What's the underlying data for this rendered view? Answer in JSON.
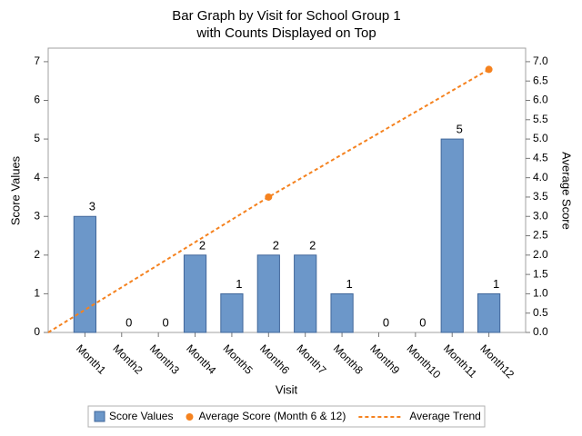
{
  "chart_data": {
    "type": "bar",
    "title": [
      "Bar Graph by Visit for School Group 1",
      "with Counts Displayed on Top"
    ],
    "x_label": "Visit",
    "y_label": "Score Values",
    "y2_label": "Average Score",
    "categories": [
      "Month1",
      "Month2",
      "Month3",
      "Month4",
      "Month5",
      "Month6",
      "Month7",
      "Month8",
      "Month9",
      "Month10",
      "Month11",
      "Month12"
    ],
    "xlim": [
      0,
      13
    ],
    "ylim": [
      0,
      7.35
    ],
    "yticks": [
      0,
      1,
      2,
      3,
      4,
      5,
      6,
      7
    ],
    "y2lim": [
      0,
      7.35
    ],
    "y2ticks": [
      {
        "value": 0,
        "label": "0.0"
      },
      {
        "value": 0.5,
        "label": "0.5"
      },
      {
        "value": 1,
        "label": "1.0"
      },
      {
        "value": 1.5,
        "label": "1.5"
      },
      {
        "value": 2,
        "label": "2.0"
      },
      {
        "value": 2.5,
        "label": "2.5"
      },
      {
        "value": 3,
        "label": "3.0"
      },
      {
        "value": 3.5,
        "label": "3.5"
      },
      {
        "value": 4,
        "label": "4.0"
      },
      {
        "value": 4.5,
        "label": "4.5"
      },
      {
        "value": 5,
        "label": "5.0"
      },
      {
        "value": 5.5,
        "label": "5.5"
      },
      {
        "value": 6,
        "label": "6.0"
      },
      {
        "value": 6.5,
        "label": "6.5"
      },
      {
        "value": 7,
        "label": "7.0"
      }
    ],
    "grid": false,
    "legend": "bottom",
    "series": [
      {
        "name": "Score Values",
        "type": "bar",
        "color": "#6c97c9",
        "values": [
          3,
          0,
          0,
          2,
          1,
          2,
          2,
          1,
          0,
          0,
          5,
          1
        ]
      },
      {
        "name": "Average Score (Month 6 & 12)",
        "type": "scatter",
        "axis": "y2",
        "color": "#f5821f",
        "values": [
          null,
          null,
          null,
          null,
          null,
          3.5,
          null,
          null,
          null,
          null,
          null,
          6.8
        ]
      },
      {
        "name": "Average Trend",
        "type": "line",
        "axis": "y2",
        "color": "#f5821f",
        "x": [
          0,
          6,
          12
        ],
        "values": [
          0,
          3.5,
          6.8
        ]
      }
    ]
  }
}
